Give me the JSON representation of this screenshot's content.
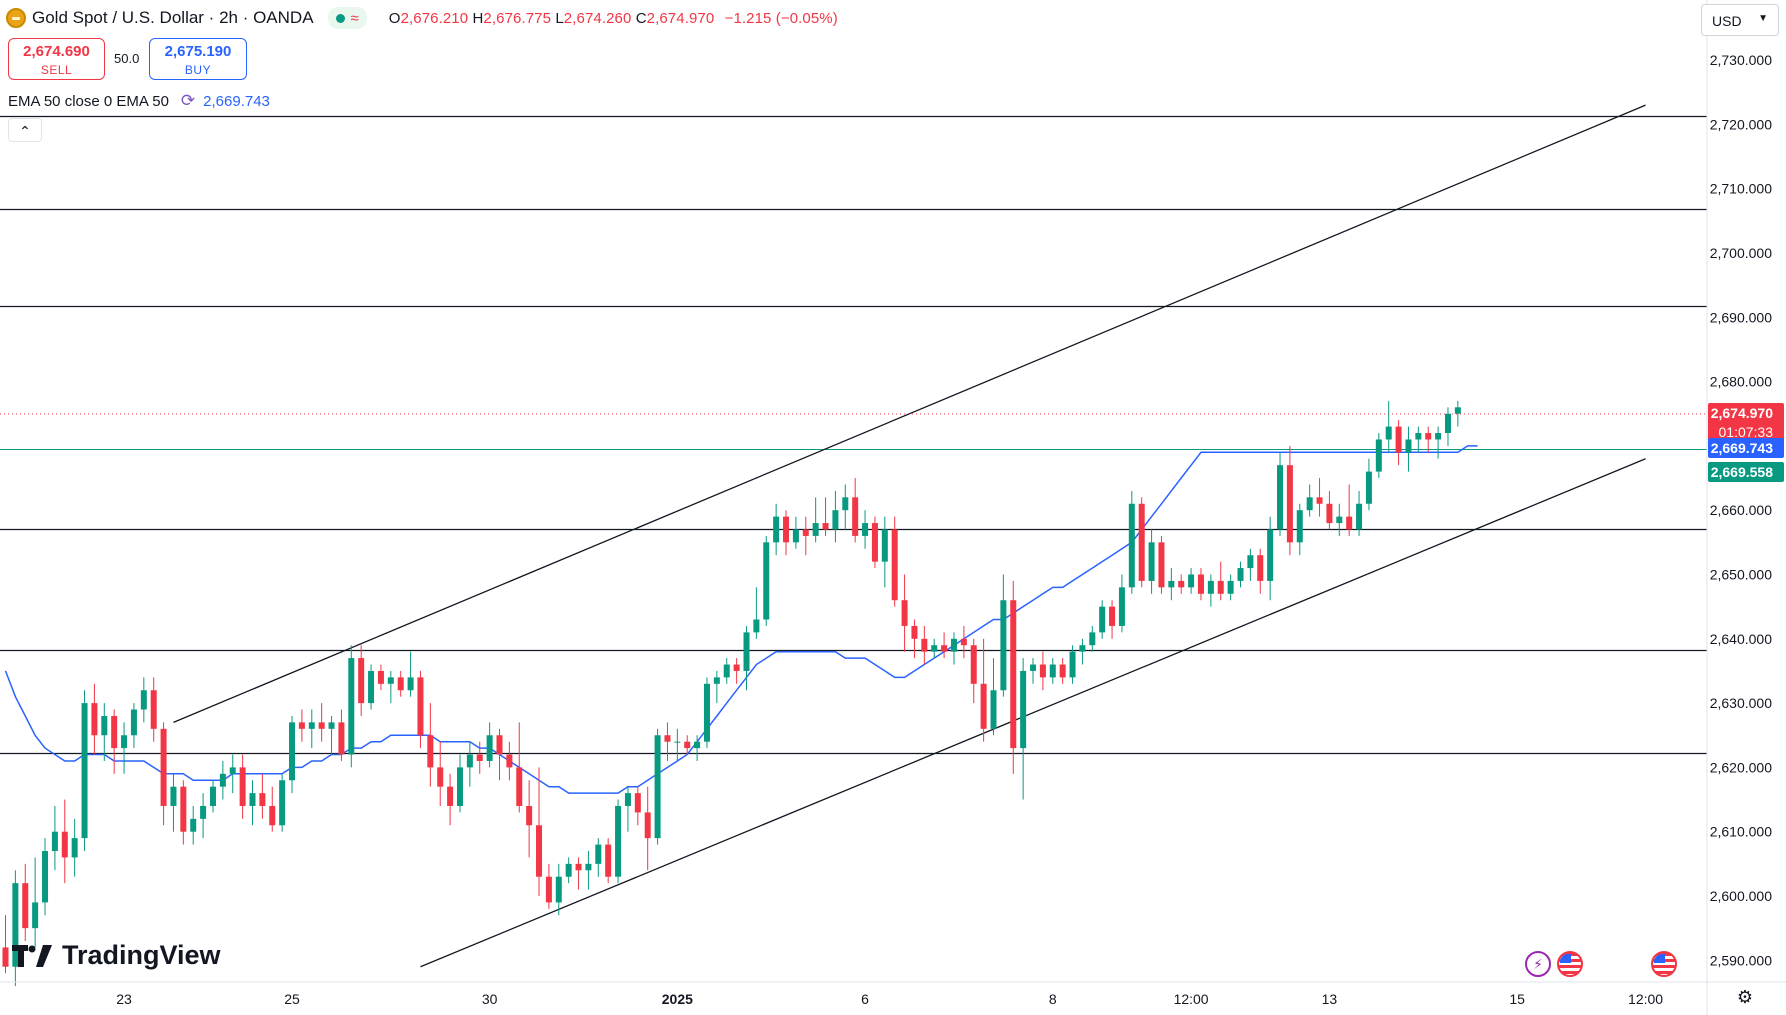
{
  "header": {
    "title": "Gold Spot / U.S. Dollar · 2h · OANDA",
    "symbol_icon": "gold-coin-icon",
    "status_icons": [
      "market-open-dot-icon",
      "wave-icon"
    ],
    "ohlc": {
      "open_label": "O",
      "open": "2,676.210",
      "high_label": "H",
      "high": "2,676.775",
      "low_label": "L",
      "low": "2,674.260",
      "close_label": "C",
      "close": "2,674.970",
      "change": "−1.215 (−0.05%)"
    }
  },
  "trade": {
    "sell_price": "2,674.690",
    "sell_label": "SELL",
    "spread": "50.0",
    "buy_price": "2,675.190",
    "buy_label": "BUY"
  },
  "indicator": {
    "legend": "EMA 50 close 0 EMA 50",
    "icon": "refresh-icon",
    "value": "2,669.743"
  },
  "toolbar": {
    "currency": "USD",
    "collapse_icon": "chevron-up-icon"
  },
  "branding": {
    "logo_text": "TradingView"
  },
  "bottom_icons": [
    "flash-icon",
    "us-flag-icon",
    "us-flag-icon",
    "settings-icon"
  ],
  "colors": {
    "up": "#089981",
    "down": "#f23645",
    "ema": "#2962ff",
    "price_label_bg": "#f23645",
    "ema_label_bg": "#2962ff",
    "bid_label_bg": "#089981",
    "level_label_bg": "#000000"
  },
  "chart_data": {
    "type": "candlestick",
    "title": "Gold Spot / U.S. Dollar",
    "timeframe": "2h",
    "ylim": [
      2583,
      2731
    ],
    "y_ticks": [
      "2,590.000",
      "2,600.000",
      "2,610.000",
      "2,620.000",
      "2,630.000",
      "2,640.000",
      "2,650.000",
      "2,660.000",
      "2,670.000",
      "2,680.000",
      "2,690.000",
      "2,700.000",
      "2,710.000",
      "2,720.000",
      "2,730.000"
    ],
    "x_ticks": [
      {
        "label": "23",
        "index": 12
      },
      {
        "label": "25",
        "index": 29
      },
      {
        "label": "30",
        "index": 49
      },
      {
        "label": "2025",
        "index": 68,
        "bold": true
      },
      {
        "label": "6",
        "index": 87
      },
      {
        "label": "8",
        "index": 106
      },
      {
        "label": "12:00",
        "index": 120
      },
      {
        "label": "13",
        "index": 134
      },
      {
        "label": "15",
        "index": 153
      },
      {
        "label": "12:00",
        "index": 166
      }
    ],
    "candles": [
      {
        "o": 2592,
        "h": 2597,
        "l": 2588,
        "c": 2589
      },
      {
        "o": 2589,
        "h": 2604,
        "l": 2586,
        "c": 2602
      },
      {
        "o": 2602,
        "h": 2605,
        "l": 2593,
        "c": 2595
      },
      {
        "o": 2595,
        "h": 2606,
        "l": 2592,
        "c": 2599
      },
      {
        "o": 2599,
        "h": 2609,
        "l": 2597,
        "c": 2607
      },
      {
        "o": 2607,
        "h": 2614,
        "l": 2604,
        "c": 2610
      },
      {
        "o": 2610,
        "h": 2615,
        "l": 2602,
        "c": 2606
      },
      {
        "o": 2606,
        "h": 2612,
        "l": 2603,
        "c": 2609
      },
      {
        "o": 2609,
        "h": 2632,
        "l": 2607,
        "c": 2630
      },
      {
        "o": 2630,
        "h": 2633,
        "l": 2622,
        "c": 2625
      },
      {
        "o": 2625,
        "h": 2630,
        "l": 2621,
        "c": 2628
      },
      {
        "o": 2628,
        "h": 2629,
        "l": 2619,
        "c": 2623
      },
      {
        "o": 2623,
        "h": 2627,
        "l": 2619,
        "c": 2625
      },
      {
        "o": 2625,
        "h": 2630,
        "l": 2623,
        "c": 2629
      },
      {
        "o": 2629,
        "h": 2634,
        "l": 2627,
        "c": 2632
      },
      {
        "o": 2632,
        "h": 2634,
        "l": 2624,
        "c": 2626
      },
      {
        "o": 2626,
        "h": 2627,
        "l": 2611,
        "c": 2614
      },
      {
        "o": 2614,
        "h": 2619,
        "l": 2610,
        "c": 2617
      },
      {
        "o": 2617,
        "h": 2618,
        "l": 2608,
        "c": 2610
      },
      {
        "o": 2610,
        "h": 2614,
        "l": 2608,
        "c": 2612
      },
      {
        "o": 2612,
        "h": 2616,
        "l": 2609,
        "c": 2614
      },
      {
        "o": 2614,
        "h": 2618,
        "l": 2613,
        "c": 2617
      },
      {
        "o": 2617,
        "h": 2621,
        "l": 2615,
        "c": 2619
      },
      {
        "o": 2619,
        "h": 2622,
        "l": 2616,
        "c": 2620
      },
      {
        "o": 2620,
        "h": 2622,
        "l": 2612,
        "c": 2614
      },
      {
        "o": 2614,
        "h": 2618,
        "l": 2611,
        "c": 2616
      },
      {
        "o": 2616,
        "h": 2619,
        "l": 2612,
        "c": 2614
      },
      {
        "o": 2614,
        "h": 2617,
        "l": 2610,
        "c": 2611
      },
      {
        "o": 2611,
        "h": 2619,
        "l": 2610,
        "c": 2618
      },
      {
        "o": 2618,
        "h": 2628,
        "l": 2616,
        "c": 2627
      },
      {
        "o": 2627,
        "h": 2629,
        "l": 2624,
        "c": 2626
      },
      {
        "o": 2626,
        "h": 2629,
        "l": 2623,
        "c": 2627
      },
      {
        "o": 2627,
        "h": 2630,
        "l": 2624,
        "c": 2626
      },
      {
        "o": 2626,
        "h": 2628,
        "l": 2622,
        "c": 2627
      },
      {
        "o": 2627,
        "h": 2629,
        "l": 2621,
        "c": 2622
      },
      {
        "o": 2622,
        "h": 2639,
        "l": 2620,
        "c": 2637
      },
      {
        "o": 2637,
        "h": 2639,
        "l": 2628,
        "c": 2630
      },
      {
        "o": 2630,
        "h": 2636,
        "l": 2629,
        "c": 2635
      },
      {
        "o": 2635,
        "h": 2636,
        "l": 2632,
        "c": 2633
      },
      {
        "o": 2633,
        "h": 2635,
        "l": 2630,
        "c": 2634
      },
      {
        "o": 2634,
        "h": 2635,
        "l": 2631,
        "c": 2632
      },
      {
        "o": 2632,
        "h": 2638,
        "l": 2631,
        "c": 2634
      },
      {
        "o": 2634,
        "h": 2635,
        "l": 2623,
        "c": 2625
      },
      {
        "o": 2625,
        "h": 2630,
        "l": 2617,
        "c": 2620
      },
      {
        "o": 2620,
        "h": 2624,
        "l": 2614,
        "c": 2617
      },
      {
        "o": 2617,
        "h": 2619,
        "l": 2611,
        "c": 2614
      },
      {
        "o": 2614,
        "h": 2622,
        "l": 2613,
        "c": 2620
      },
      {
        "o": 2620,
        "h": 2624,
        "l": 2617,
        "c": 2622
      },
      {
        "o": 2622,
        "h": 2624,
        "l": 2619,
        "c": 2621
      },
      {
        "o": 2621,
        "h": 2627,
        "l": 2620,
        "c": 2625
      },
      {
        "o": 2625,
        "h": 2626,
        "l": 2618,
        "c": 2622
      },
      {
        "o": 2622,
        "h": 2624,
        "l": 2618,
        "c": 2620
      },
      {
        "o": 2620,
        "h": 2627,
        "l": 2613,
        "c": 2614
      },
      {
        "o": 2614,
        "h": 2618,
        "l": 2606,
        "c": 2611
      },
      {
        "o": 2611,
        "h": 2620,
        "l": 2600,
        "c": 2603
      },
      {
        "o": 2603,
        "h": 2605,
        "l": 2598,
        "c": 2599
      },
      {
        "o": 2599,
        "h": 2605,
        "l": 2597,
        "c": 2603
      },
      {
        "o": 2603,
        "h": 2606,
        "l": 2602,
        "c": 2605
      },
      {
        "o": 2605,
        "h": 2606,
        "l": 2601,
        "c": 2604
      },
      {
        "o": 2604,
        "h": 2607,
        "l": 2601,
        "c": 2605
      },
      {
        "o": 2605,
        "h": 2609,
        "l": 2603,
        "c": 2608
      },
      {
        "o": 2608,
        "h": 2609,
        "l": 2602,
        "c": 2603
      },
      {
        "o": 2603,
        "h": 2615,
        "l": 2602,
        "c": 2614
      },
      {
        "o": 2614,
        "h": 2617,
        "l": 2610,
        "c": 2616
      },
      {
        "o": 2616,
        "h": 2617,
        "l": 2611,
        "c": 2613
      },
      {
        "o": 2613,
        "h": 2617,
        "l": 2604,
        "c": 2609
      },
      {
        "o": 2609,
        "h": 2626,
        "l": 2608,
        "c": 2625
      },
      {
        "o": 2625,
        "h": 2627,
        "l": 2621,
        "c": 2624
      },
      {
        "o": 2624,
        "h": 2626,
        "l": 2621,
        "c": 2624
      },
      {
        "o": 2624,
        "h": 2625,
        "l": 2622,
        "c": 2623
      },
      {
        "o": 2623,
        "h": 2625,
        "l": 2621,
        "c": 2624
      },
      {
        "o": 2624,
        "h": 2634,
        "l": 2623,
        "c": 2633
      },
      {
        "o": 2633,
        "h": 2635,
        "l": 2630,
        "c": 2634
      },
      {
        "o": 2634,
        "h": 2637,
        "l": 2633,
        "c": 2636
      },
      {
        "o": 2636,
        "h": 2637,
        "l": 2633,
        "c": 2635
      },
      {
        "o": 2635,
        "h": 2642,
        "l": 2632,
        "c": 2641
      },
      {
        "o": 2641,
        "h": 2648,
        "l": 2640,
        "c": 2643
      },
      {
        "o": 2643,
        "h": 2656,
        "l": 2642,
        "c": 2655
      },
      {
        "o": 2655,
        "h": 2661,
        "l": 2653,
        "c": 2659
      },
      {
        "o": 2659,
        "h": 2660,
        "l": 2653,
        "c": 2655
      },
      {
        "o": 2655,
        "h": 2659,
        "l": 2654,
        "c": 2657
      },
      {
        "o": 2657,
        "h": 2659,
        "l": 2653,
        "c": 2656
      },
      {
        "o": 2656,
        "h": 2662,
        "l": 2655,
        "c": 2658
      },
      {
        "o": 2658,
        "h": 2662,
        "l": 2656,
        "c": 2657
      },
      {
        "o": 2657,
        "h": 2663,
        "l": 2655,
        "c": 2660
      },
      {
        "o": 2660,
        "h": 2664,
        "l": 2657,
        "c": 2662
      },
      {
        "o": 2662,
        "h": 2665,
        "l": 2655,
        "c": 2656
      },
      {
        "o": 2656,
        "h": 2660,
        "l": 2654,
        "c": 2658
      },
      {
        "o": 2658,
        "h": 2659,
        "l": 2651,
        "c": 2652
      },
      {
        "o": 2652,
        "h": 2659,
        "l": 2648,
        "c": 2657
      },
      {
        "o": 2657,
        "h": 2659,
        "l": 2645,
        "c": 2646
      },
      {
        "o": 2646,
        "h": 2650,
        "l": 2638,
        "c": 2642
      },
      {
        "o": 2642,
        "h": 2643,
        "l": 2637,
        "c": 2640
      },
      {
        "o": 2640,
        "h": 2642,
        "l": 2636,
        "c": 2638
      },
      {
        "o": 2638,
        "h": 2640,
        "l": 2637,
        "c": 2639
      },
      {
        "o": 2639,
        "h": 2641,
        "l": 2637,
        "c": 2638
      },
      {
        "o": 2638,
        "h": 2641,
        "l": 2636,
        "c": 2640
      },
      {
        "o": 2640,
        "h": 2642,
        "l": 2637,
        "c": 2639
      },
      {
        "o": 2639,
        "h": 2640,
        "l": 2630,
        "c": 2633
      },
      {
        "o": 2633,
        "h": 2640,
        "l": 2624,
        "c": 2626
      },
      {
        "o": 2626,
        "h": 2637,
        "l": 2625,
        "c": 2632
      },
      {
        "o": 2632,
        "h": 2650,
        "l": 2631,
        "c": 2646
      },
      {
        "o": 2646,
        "h": 2649,
        "l": 2619,
        "c": 2623
      },
      {
        "o": 2623,
        "h": 2637,
        "l": 2615,
        "c": 2635
      },
      {
        "o": 2635,
        "h": 2637,
        "l": 2633,
        "c": 2636
      },
      {
        "o": 2636,
        "h": 2638,
        "l": 2632,
        "c": 2634
      },
      {
        "o": 2634,
        "h": 2637,
        "l": 2633,
        "c": 2636
      },
      {
        "o": 2636,
        "h": 2637,
        "l": 2633,
        "c": 2634
      },
      {
        "o": 2634,
        "h": 2639,
        "l": 2633,
        "c": 2638
      },
      {
        "o": 2638,
        "h": 2640,
        "l": 2636,
        "c": 2639
      },
      {
        "o": 2639,
        "h": 2642,
        "l": 2638,
        "c": 2641
      },
      {
        "o": 2641,
        "h": 2646,
        "l": 2640,
        "c": 2645
      },
      {
        "o": 2645,
        "h": 2646,
        "l": 2640,
        "c": 2642
      },
      {
        "o": 2642,
        "h": 2650,
        "l": 2641,
        "c": 2648
      },
      {
        "o": 2648,
        "h": 2663,
        "l": 2647,
        "c": 2661
      },
      {
        "o": 2661,
        "h": 2662,
        "l": 2648,
        "c": 2649
      },
      {
        "o": 2649,
        "h": 2657,
        "l": 2647,
        "c": 2655
      },
      {
        "o": 2655,
        "h": 2656,
        "l": 2647,
        "c": 2648
      },
      {
        "o": 2648,
        "h": 2651,
        "l": 2646,
        "c": 2649
      },
      {
        "o": 2649,
        "h": 2650,
        "l": 2647,
        "c": 2648
      },
      {
        "o": 2648,
        "h": 2651,
        "l": 2647,
        "c": 2650
      },
      {
        "o": 2650,
        "h": 2651,
        "l": 2646,
        "c": 2647
      },
      {
        "o": 2647,
        "h": 2650,
        "l": 2645,
        "c": 2649
      },
      {
        "o": 2649,
        "h": 2652,
        "l": 2646,
        "c": 2647
      },
      {
        "o": 2647,
        "h": 2650,
        "l": 2646,
        "c": 2649
      },
      {
        "o": 2649,
        "h": 2652,
        "l": 2648,
        "c": 2651
      },
      {
        "o": 2651,
        "h": 2654,
        "l": 2649,
        "c": 2653
      },
      {
        "o": 2653,
        "h": 2654,
        "l": 2647,
        "c": 2649
      },
      {
        "o": 2649,
        "h": 2659,
        "l": 2646,
        "c": 2657
      },
      {
        "o": 2657,
        "h": 2669,
        "l": 2656,
        "c": 2667
      },
      {
        "o": 2667,
        "h": 2670,
        "l": 2653,
        "c": 2655
      },
      {
        "o": 2655,
        "h": 2661,
        "l": 2653,
        "c": 2660
      },
      {
        "o": 2660,
        "h": 2664,
        "l": 2659,
        "c": 2662
      },
      {
        "o": 2662,
        "h": 2665,
        "l": 2659,
        "c": 2661
      },
      {
        "o": 2661,
        "h": 2663,
        "l": 2657,
        "c": 2658
      },
      {
        "o": 2658,
        "h": 2661,
        "l": 2656,
        "c": 2659
      },
      {
        "o": 2659,
        "h": 2664,
        "l": 2656,
        "c": 2657
      },
      {
        "o": 2657,
        "h": 2663,
        "l": 2656,
        "c": 2661
      },
      {
        "o": 2661,
        "h": 2668,
        "l": 2660,
        "c": 2666
      },
      {
        "o": 2666,
        "h": 2672,
        "l": 2665,
        "c": 2671
      },
      {
        "o": 2671,
        "h": 2677,
        "l": 2669,
        "c": 2673
      },
      {
        "o": 2673,
        "h": 2674,
        "l": 2667,
        "c": 2669
      },
      {
        "o": 2669,
        "h": 2673,
        "l": 2666,
        "c": 2671
      },
      {
        "o": 2671,
        "h": 2673,
        "l": 2669,
        "c": 2672
      },
      {
        "o": 2672,
        "h": 2673,
        "l": 2669,
        "c": 2671
      },
      {
        "o": 2671,
        "h": 2673,
        "l": 2668,
        "c": 2672
      },
      {
        "o": 2672,
        "h": 2676,
        "l": 2670,
        "c": 2675
      },
      {
        "o": 2675,
        "h": 2677,
        "l": 2673,
        "c": 2676
      }
    ],
    "ema50": [
      2635,
      2631,
      2628,
      2625,
      2623,
      2622,
      2621,
      2621,
      2622,
      2622,
      2622,
      2621,
      2621,
      2621,
      2621,
      2620,
      2619,
      2619,
      2619,
      2618,
      2618,
      2618,
      2618,
      2619,
      2619,
      2619,
      2619,
      2619,
      2619,
      2620,
      2620,
      2621,
      2621,
      2622,
      2622,
      2623,
      2623,
      2624,
      2624,
      2625,
      2625,
      2625,
      2625,
      2625,
      2624,
      2624,
      2624,
      2624,
      2623,
      2623,
      2622,
      2621,
      2620,
      2619,
      2618,
      2617,
      2617,
      2616,
      2616,
      2616,
      2616,
      2616,
      2616,
      2617,
      2617,
      2618,
      2619,
      2620,
      2621,
      2622,
      2624,
      2626,
      2628,
      2630,
      2632,
      2634,
      2636,
      2637,
      2638,
      2638,
      2638,
      2638,
      2638,
      2638,
      2638,
      2637,
      2637,
      2637,
      2636,
      2635,
      2634,
      2634,
      2635,
      2636,
      2637,
      2638,
      2639,
      2640,
      2641,
      2642,
      2643,
      2643,
      2644,
      2645,
      2646,
      2647,
      2648,
      2648,
      2649,
      2650,
      2651,
      2652,
      2653,
      2654,
      2655,
      2657,
      2659,
      2661,
      2663,
      2665,
      2667,
      2669,
      2669,
      2669,
      2669,
      2669,
      2669,
      2669,
      2669,
      2669,
      2669,
      2669,
      2669,
      2669,
      2669,
      2669,
      2669,
      2669,
      2669,
      2669,
      2669,
      2669,
      2669,
      2669,
      2669,
      2669,
      2669,
      2669,
      2670,
      2670
    ],
    "horizontal_levels": [
      {
        "value": 2721.307,
        "label": "2,721.307"
      },
      {
        "value": 2706.792,
        "label": "2,706.792"
      },
      {
        "value": 2691.763,
        "label": "2,691.763"
      },
      {
        "value": 2657.006,
        "label": "2,657.006"
      },
      {
        "value": 2638.314,
        "label": "2,638.314"
      },
      {
        "value": 2622.261,
        "label": "2,622.261"
      }
    ],
    "channel_upper": {
      "from": {
        "index": 17,
        "value": 2627
      },
      "to": {
        "index": 166,
        "value": 2723
      }
    },
    "channel_lower": {
      "from": {
        "index": 42,
        "value": 2589
      },
      "to": {
        "index": 166,
        "value": 2668
      }
    },
    "last_price": {
      "value": 2674.97,
      "label": "2,674.970",
      "countdown": "01:07:33"
    },
    "ema_label": {
      "value": 2669.743,
      "label": "2,669.743"
    },
    "bid_line": {
      "value": 2669.558,
      "label": "2,669.558"
    }
  }
}
